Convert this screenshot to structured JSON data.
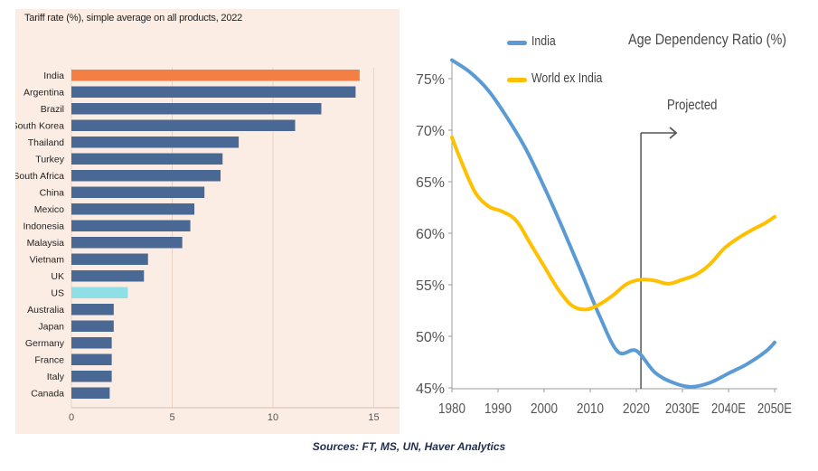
{
  "footer": {
    "sources": "Sources: FT, MS, UN, Haver Analytics"
  },
  "chart_data": [
    {
      "type": "bar",
      "orientation": "horizontal",
      "title": "Tariff rate (%), simple average on all products, 2022",
      "categories": [
        "India",
        "Argentina",
        "Brazil",
        "South Korea",
        "Thailand",
        "Turkey",
        "South Africa",
        "China",
        "Mexico",
        "Indonesia",
        "Malaysia",
        "Vietnam",
        "UK",
        "US",
        "Australia",
        "Japan",
        "Germany",
        "France",
        "Italy",
        "Canada"
      ],
      "values": [
        14.3,
        14.1,
        12.4,
        11.1,
        8.3,
        7.5,
        7.4,
        6.6,
        6.1,
        5.9,
        5.5,
        3.8,
        3.6,
        2.8,
        2.1,
        2.1,
        2.0,
        2.0,
        2.0,
        1.9
      ],
      "highlight": {
        "India": "#f47f45",
        "US": "#8fdfe6"
      },
      "bar_color": "#4a6894",
      "xlim": [
        0,
        16
      ],
      "xticks": [
        0,
        5,
        10,
        15
      ],
      "grid": "vertical"
    },
    {
      "type": "line",
      "title": "Age Dependency Ratio (%)",
      "x_labels": [
        "1980",
        "1990",
        "2000",
        "2010",
        "2020",
        "2030E",
        "2040E",
        "2050E"
      ],
      "x_range": [
        1980,
        2050
      ],
      "ylim": [
        45,
        77
      ],
      "yticks": [
        "45%",
        "50%",
        "55%",
        "60%",
        "65%",
        "70%",
        "75%"
      ],
      "ytick_values": [
        45,
        50,
        55,
        60,
        65,
        70,
        75
      ],
      "annotation": {
        "label": "Projected",
        "x": 2021
      },
      "legend_position": "top-left",
      "series": [
        {
          "name": "India",
          "color": "#5b9bd5",
          "x": [
            1980,
            1984,
            1988,
            1992,
            1996,
            2000,
            2004,
            2008,
            2012,
            2016,
            2020,
            2024,
            2028,
            2032,
            2036,
            2040,
            2044,
            2048,
            2050
          ],
          "values": [
            76.8,
            75.6,
            73.8,
            71.2,
            68.2,
            64.5,
            60.5,
            56.3,
            52.0,
            48.5,
            48.6,
            46.5,
            45.5,
            45.1,
            45.5,
            46.4,
            47.3,
            48.5,
            49.4
          ]
        },
        {
          "name": "World ex India",
          "color": "#ffc000",
          "x": [
            1980,
            1982,
            1985,
            1988,
            1991,
            1994,
            1997,
            2000,
            2003,
            2006,
            2009,
            2012,
            2015,
            2018,
            2021,
            2024,
            2027,
            2030,
            2033,
            2036,
            2039,
            2042,
            2045,
            2048,
            2050
          ],
          "values": [
            69.3,
            67.0,
            64.0,
            62.6,
            62.1,
            61.2,
            59.0,
            56.8,
            54.6,
            53.0,
            52.6,
            53.1,
            54.0,
            55.1,
            55.5,
            55.4,
            55.1,
            55.5,
            56.0,
            57.0,
            58.5,
            59.5,
            60.3,
            61.0,
            61.6
          ]
        }
      ]
    }
  ]
}
